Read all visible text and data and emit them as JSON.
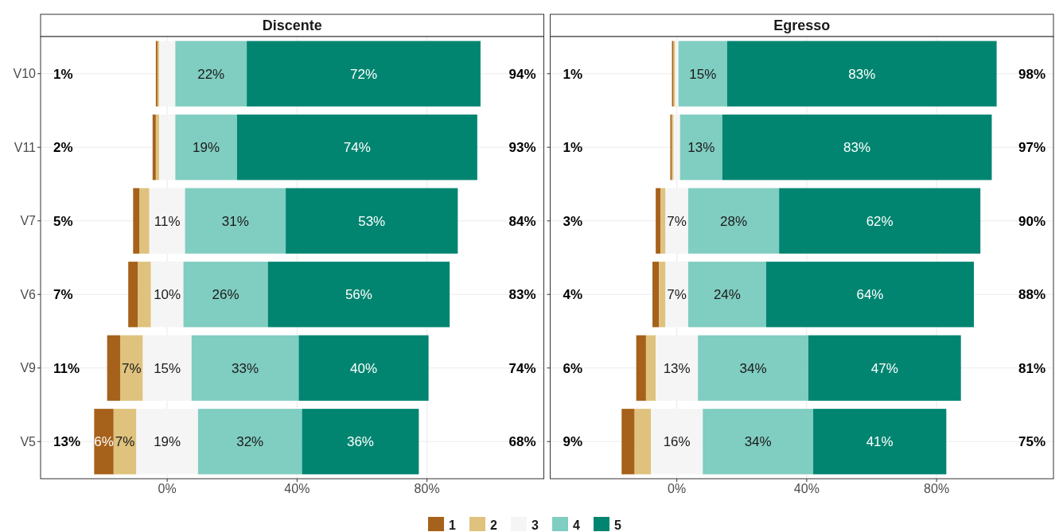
{
  "chart_data": [
    {
      "type": "bar",
      "title": "Discente",
      "orientation": "horizontal",
      "categories": [
        "V10",
        "V11",
        "V7",
        "V6",
        "V9",
        "V5"
      ],
      "series": [
        {
          "name": "1",
          "color": "#a6611a",
          "base": [
            -3.5,
            -4.5,
            -10.5,
            -12,
            -18.5,
            -22.5
          ],
          "values": [
            0.5,
            1,
            2,
            3,
            4,
            6
          ],
          "value_labels": [
            null,
            null,
            null,
            null,
            null,
            "6%"
          ]
        },
        {
          "name": "2",
          "color": "#dfc27d",
          "base": [
            -3,
            -3.5,
            -8.5,
            -9,
            -14.5,
            -16.5
          ],
          "values": [
            0.5,
            1,
            3,
            4,
            7,
            7
          ],
          "value_labels": [
            null,
            null,
            null,
            null,
            "7%",
            "7%"
          ]
        },
        {
          "name": "3",
          "color": "#f5f5f5",
          "base": [
            -2.5,
            -2.5,
            -5.5,
            -5,
            -7.5,
            -9.5
          ],
          "values": [
            5,
            5,
            11,
            10,
            15,
            19
          ],
          "value_labels": [
            null,
            null,
            "11%",
            "10%",
            "15%",
            "19%"
          ]
        },
        {
          "name": "4",
          "color": "#80cdc1",
          "base": [
            2.5,
            2.5,
            5.5,
            5,
            7.5,
            9.5
          ],
          "values": [
            22,
            19,
            31,
            26,
            33,
            32
          ],
          "value_labels": [
            "22%",
            "19%",
            "31%",
            "26%",
            "33%",
            "32%"
          ]
        },
        {
          "name": "5",
          "color": "#018571",
          "base": [
            24.5,
            21.5,
            36.5,
            31,
            40.5,
            41.5
          ],
          "values": [
            72,
            74,
            53,
            56,
            40,
            36
          ],
          "value_labels": [
            "72%",
            "74%",
            "53%",
            "56%",
            "40%",
            "36%"
          ]
        }
      ],
      "annotations": [
        "1%",
        "2%",
        "5%",
        "7%",
        "11%",
        "13%",
        "94%",
        "93%",
        "84%",
        "83%",
        "74%",
        "68%"
      ],
      "xlim": [
        -39,
        116
      ],
      "xticks": [
        {
          "value": 0,
          "label": "0%"
        },
        {
          "value": 40,
          "label": "40%"
        },
        {
          "value": 80,
          "label": "80%"
        }
      ],
      "grid": true,
      "legend": "bottom"
    },
    {
      "type": "bar",
      "title": "Egresso",
      "orientation": "horizontal",
      "categories": [
        "V10",
        "V11",
        "V7",
        "V6",
        "V9",
        "V5"
      ],
      "series": [
        {
          "color": "#a6611a",
          "base": [
            -1.5,
            -2,
            -6.5,
            -7.5,
            -12.5,
            -17
          ],
          "values": [
            0.5,
            0.5,
            1.5,
            2,
            3,
            4
          ]
        },
        {
          "color": "#dfc27d",
          "base": [
            -1,
            -1.5,
            -5,
            -5.5,
            -9.5,
            -13
          ],
          "values": [
            0.5,
            0.5,
            1.5,
            2,
            3,
            5
          ]
        },
        {
          "color": "#f5f5f5",
          "base": [
            -0.5,
            -1,
            -3.5,
            -3.5,
            -6.5,
            -8
          ],
          "values": [
            1,
            2,
            7,
            7,
            13,
            16
          ],
          "value_labels": [
            null,
            null,
            "7%",
            "7%",
            "13%",
            "16%"
          ]
        },
        {
          "color": "#80cdc1",
          "base": [
            0.5,
            1,
            3.5,
            3.5,
            6.5,
            8
          ],
          "values": [
            15,
            13,
            28,
            24,
            34,
            34
          ],
          "value_labels": [
            "15%",
            "13%",
            "28%",
            "24%",
            "34%",
            "34%"
          ]
        },
        {
          "color": "#018571",
          "base": [
            15.5,
            14,
            31.5,
            27.5,
            40.5,
            42
          ],
          "values": [
            83,
            83,
            62,
            64,
            47,
            41
          ],
          "value_labels": [
            "83%",
            "83%",
            "62%",
            "64%",
            "47%",
            "41%"
          ]
        }
      ],
      "annotations": [
        "1%",
        "1%",
        "3%",
        "4%",
        "6%",
        "9%",
        "98%",
        "97%",
        "90%",
        "88%",
        "81%",
        "75%"
      ],
      "xlim": [
        -39,
        116
      ],
      "xticks": [
        {
          "value": 0,
          "label": "0%"
        },
        {
          "value": 40,
          "label": "40%"
        },
        {
          "value": 80,
          "label": "80%"
        }
      ],
      "grid": true,
      "tick_labels": "x"
    }
  ]
}
